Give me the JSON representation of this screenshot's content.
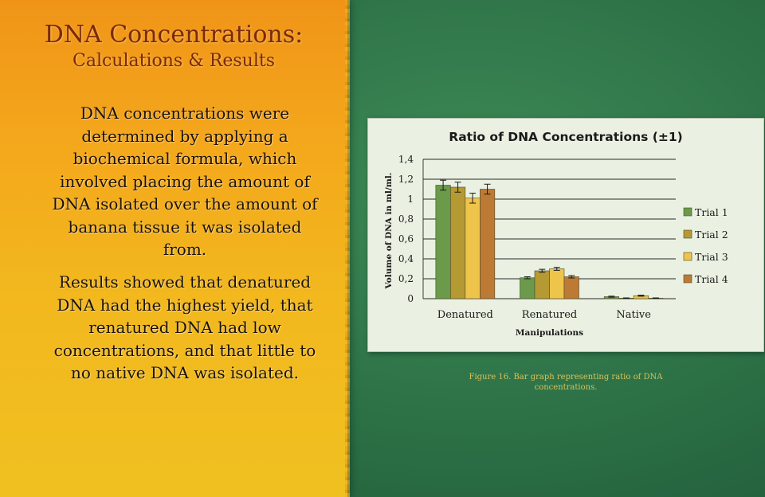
{
  "slide": {
    "title": "DNA Concentrations:",
    "subtitle": "Calculations & Results",
    "paragraph1": "DNA concentrations were determined by applying a biochemical formula, which involved placing the amount of DNA isolated over the amount of banana tissue it was isolated from.",
    "paragraph2": "Results showed that denatured DNA had the highest yield, that renatured DNA had low concentrations, and that little to no native DNA was isolated.",
    "caption": "Figure 16. Bar graph representing ratio of DNA concentrations."
  },
  "colors": {
    "series": [
      "#6b9a4a",
      "#b59a34",
      "#efc44a",
      "#bd7a34"
    ],
    "panel": "#f2a81c",
    "title_text": "#7a2a06"
  },
  "chart_data": {
    "type": "bar",
    "title": "Ratio of DNA Concentrations (±1)",
    "xlabel": "Manipulations",
    "ylabel": "Volume of DNA in ml/ml.",
    "categories": [
      "Denatured",
      "Renatured",
      "Native"
    ],
    "ylim": [
      0,
      1.4
    ],
    "yticks": [
      "0",
      "0,2",
      "0,4",
      "0,6",
      "0,8",
      "1",
      "1,2",
      "1,4"
    ],
    "ytick_values": [
      0,
      0.2,
      0.4,
      0.6,
      0.8,
      1.0,
      1.2,
      1.4
    ],
    "grid": true,
    "legend_position": "right",
    "series": [
      {
        "name": "Trial 1",
        "values": [
          1.14,
          0.21,
          0.02
        ],
        "errors": [
          0.05,
          0.01,
          0.005
        ]
      },
      {
        "name": "Trial 2",
        "values": [
          1.12,
          0.28,
          0.005
        ],
        "errors": [
          0.05,
          0.015,
          0.003
        ]
      },
      {
        "name": "Trial 3",
        "values": [
          1.01,
          0.3,
          0.03
        ],
        "errors": [
          0.05,
          0.015,
          0.005
        ]
      },
      {
        "name": "Trial 4",
        "values": [
          1.1,
          0.22,
          0.005
        ],
        "errors": [
          0.05,
          0.012,
          0.003
        ]
      }
    ]
  }
}
